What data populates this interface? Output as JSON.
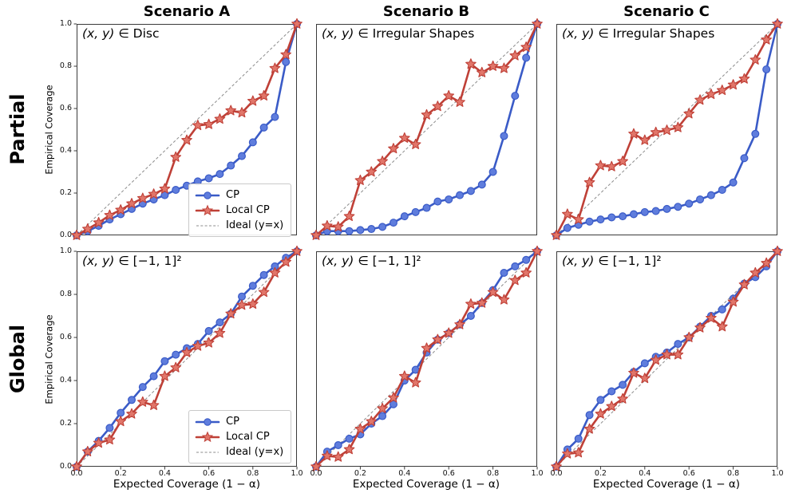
{
  "figure": {
    "col_titles": [
      "Scenario A",
      "Scenario B",
      "Scenario C"
    ],
    "row_labels": [
      "Partial",
      "Global"
    ],
    "ylabel": "Empirical Coverage",
    "xlabel": "Expected Coverage (1 − α)",
    "x_ticks": [
      "0.0",
      "0.2",
      "0.4",
      "0.6",
      "0.8",
      "1.0"
    ],
    "y_ticks": [
      "0.0",
      "0.2",
      "0.4",
      "0.6",
      "0.8",
      "1.0"
    ]
  },
  "legend": {
    "cp": "CP",
    "local": "Local CP",
    "ideal": "Ideal (y=x)"
  },
  "colors": {
    "cp_line": "#3a5bc7",
    "cp_marker_fill": "#5f7ddd",
    "local_line": "#bf4037",
    "local_marker_fill": "#e1766a",
    "ideal_line": "#8c8c8c",
    "frame": "#3a3a3a",
    "background": "#ffffff"
  },
  "x_values": [
    0,
    0.05,
    0.1,
    0.15,
    0.2,
    0.25,
    0.3,
    0.35,
    0.4,
    0.45,
    0.5,
    0.55,
    0.6,
    0.65,
    0.7,
    0.75,
    0.8,
    0.85,
    0.9,
    0.95,
    1.0
  ],
  "chart_data": [
    {
      "type": "line",
      "row": "Partial",
      "col": "Scenario A",
      "annotation": "(x, y) ∈ Disc",
      "xlim": [
        0,
        1
      ],
      "ylim": [
        0,
        1
      ],
      "legend_visible": true,
      "legend_position": "lower right",
      "series": [
        {
          "name": "CP",
          "values": [
            0,
            0.02,
            0.045,
            0.075,
            0.1,
            0.125,
            0.15,
            0.17,
            0.19,
            0.215,
            0.235,
            0.255,
            0.27,
            0.29,
            0.33,
            0.375,
            0.44,
            0.51,
            0.56,
            0.82,
            1.0
          ]
        },
        {
          "name": "Local CP",
          "values": [
            0,
            0.03,
            0.06,
            0.095,
            0.12,
            0.15,
            0.175,
            0.195,
            0.22,
            0.37,
            0.45,
            0.52,
            0.525,
            0.55,
            0.59,
            0.58,
            0.635,
            0.66,
            0.79,
            0.855,
            1.0
          ]
        },
        {
          "name": "Ideal (y=x)",
          "style": "dashed-diagonal"
        }
      ]
    },
    {
      "type": "line",
      "row": "Partial",
      "col": "Scenario B",
      "annotation": "(x, y) ∈ Irregular Shapes",
      "xlim": [
        0,
        1
      ],
      "ylim": [
        0,
        1
      ],
      "legend_visible": false,
      "series": [
        {
          "name": "CP",
          "values": [
            0,
            0.02,
            0.02,
            0.02,
            0.025,
            0.03,
            0.04,
            0.06,
            0.09,
            0.11,
            0.13,
            0.16,
            0.17,
            0.19,
            0.21,
            0.24,
            0.3,
            0.47,
            0.66,
            0.84,
            1.0
          ]
        },
        {
          "name": "Local CP",
          "values": [
            0,
            0.045,
            0.04,
            0.09,
            0.26,
            0.3,
            0.35,
            0.41,
            0.46,
            0.43,
            0.57,
            0.61,
            0.66,
            0.63,
            0.81,
            0.77,
            0.8,
            0.79,
            0.85,
            0.89,
            1.0
          ]
        },
        {
          "name": "Ideal (y=x)",
          "style": "dashed-diagonal"
        }
      ]
    },
    {
      "type": "line",
      "row": "Partial",
      "col": "Scenario C",
      "annotation": "(x, y) ∈ Irregular Shapes",
      "xlim": [
        0,
        1
      ],
      "ylim": [
        0,
        1
      ],
      "legend_visible": false,
      "series": [
        {
          "name": "CP",
          "values": [
            0,
            0.035,
            0.05,
            0.065,
            0.075,
            0.085,
            0.09,
            0.1,
            0.11,
            0.115,
            0.125,
            0.135,
            0.15,
            0.17,
            0.19,
            0.215,
            0.25,
            0.365,
            0.48,
            0.785,
            1.0
          ]
        },
        {
          "name": "Local CP",
          "values": [
            0,
            0.1,
            0.075,
            0.25,
            0.33,
            0.325,
            0.35,
            0.48,
            0.45,
            0.487,
            0.497,
            0.51,
            0.575,
            0.64,
            0.667,
            0.686,
            0.712,
            0.74,
            0.83,
            0.925,
            1.0
          ]
        },
        {
          "name": "Ideal (y=x)",
          "style": "dashed-diagonal"
        }
      ]
    },
    {
      "type": "line",
      "row": "Global",
      "col": "Scenario A",
      "annotation": "(x, y) ∈ [−1, 1]²",
      "xlim": [
        0,
        1
      ],
      "ylim": [
        0,
        1
      ],
      "legend_visible": true,
      "legend_position": "lower right",
      "series": [
        {
          "name": "CP",
          "values": [
            0,
            0.07,
            0.12,
            0.18,
            0.25,
            0.31,
            0.37,
            0.42,
            0.49,
            0.52,
            0.55,
            0.57,
            0.63,
            0.67,
            0.71,
            0.79,
            0.84,
            0.89,
            0.93,
            0.97,
            1.0
          ]
        },
        {
          "name": "Local CP",
          "values": [
            0,
            0.07,
            0.11,
            0.125,
            0.21,
            0.245,
            0.3,
            0.285,
            0.42,
            0.46,
            0.53,
            0.56,
            0.575,
            0.62,
            0.71,
            0.75,
            0.755,
            0.81,
            0.9,
            0.95,
            1.0
          ]
        },
        {
          "name": "Ideal (y=x)",
          "style": "dashed-diagonal"
        }
      ]
    },
    {
      "type": "line",
      "row": "Global",
      "col": "Scenario B",
      "annotation": "(x, y) ∈ [−1, 1]²",
      "xlim": [
        0,
        1
      ],
      "ylim": [
        0,
        1
      ],
      "legend_visible": false,
      "series": [
        {
          "name": "CP",
          "values": [
            0,
            0.07,
            0.1,
            0.13,
            0.15,
            0.2,
            0.235,
            0.29,
            0.4,
            0.45,
            0.53,
            0.59,
            0.62,
            0.66,
            0.7,
            0.76,
            0.82,
            0.9,
            0.93,
            0.96,
            1.0
          ]
        },
        {
          "name": "Local CP",
          "values": [
            0,
            0.05,
            0.045,
            0.08,
            0.175,
            0.21,
            0.27,
            0.32,
            0.42,
            0.39,
            0.55,
            0.59,
            0.62,
            0.66,
            0.755,
            0.76,
            0.81,
            0.775,
            0.865,
            0.9,
            1.0
          ]
        },
        {
          "name": "Ideal (y=x)",
          "style": "dashed-diagonal"
        }
      ]
    },
    {
      "type": "line",
      "row": "Global",
      "col": "Scenario C",
      "annotation": "(x, y) ∈ [−1, 1]²",
      "xlim": [
        0,
        1
      ],
      "ylim": [
        0,
        1
      ],
      "legend_visible": false,
      "series": [
        {
          "name": "CP",
          "values": [
            0,
            0.08,
            0.13,
            0.24,
            0.31,
            0.35,
            0.38,
            0.44,
            0.48,
            0.51,
            0.53,
            0.57,
            0.6,
            0.65,
            0.7,
            0.73,
            0.78,
            0.85,
            0.88,
            0.93,
            1.0
          ]
        },
        {
          "name": "Local CP",
          "values": [
            0,
            0.06,
            0.065,
            0.175,
            0.245,
            0.28,
            0.315,
            0.435,
            0.41,
            0.495,
            0.52,
            0.52,
            0.6,
            0.645,
            0.69,
            0.65,
            0.765,
            0.845,
            0.9,
            0.945,
            1.0
          ]
        },
        {
          "name": "Ideal (y=x)",
          "style": "dashed-diagonal"
        }
      ]
    }
  ]
}
